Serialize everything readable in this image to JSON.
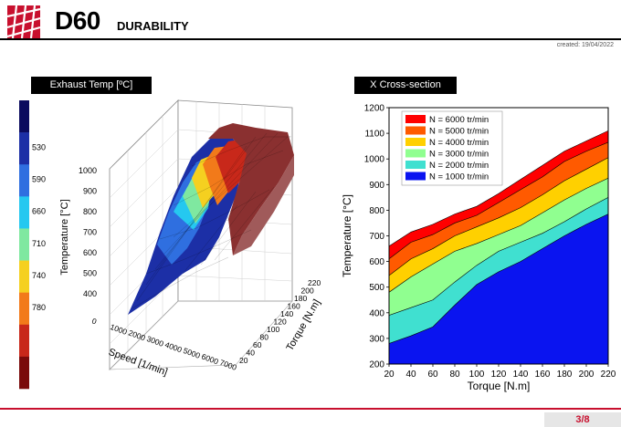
{
  "header": {
    "title_main": "D60",
    "title_sub": "DURABILITY",
    "created": "created: 19/04/2022"
  },
  "colors": {
    "brand_red": "#c8102e"
  },
  "left_panel": {
    "label": "Exhaust Temp [ºC]",
    "colorbar": {
      "colors": [
        "#0a0a5e",
        "#1c2fa6",
        "#2f6fe0",
        "#25c8f0",
        "#7fe8a0",
        "#f5d020",
        "#f27a1a",
        "#c8281a",
        "#7a0a0a"
      ],
      "labels": [
        "530",
        "590",
        "660",
        "710",
        "740",
        "780"
      ]
    },
    "surface_plot": {
      "z_ticks": [
        "1000",
        "900",
        "800",
        "700",
        "600",
        "500",
        "400"
      ],
      "z_label": "Temperature [°C]",
      "x_ticks": [
        "0",
        "1000",
        "2000",
        "3000",
        "4000",
        "5000",
        "6000",
        "7000"
      ],
      "x_label": "Speed [1/min]",
      "y_ticks": [
        "20",
        "40",
        "60",
        "80",
        "100",
        "120",
        "140",
        "160",
        "180",
        "200",
        "220"
      ],
      "y_label": "Torque [N.m]"
    }
  },
  "right_panel": {
    "label": "X Cross-section",
    "chart_data": {
      "type": "area",
      "x": [
        20,
        40,
        60,
        80,
        100,
        120,
        140,
        160,
        180,
        200,
        220
      ],
      "xlim": [
        20,
        220
      ],
      "ylim": [
        200,
        1200
      ],
      "xticks": [
        "20",
        "40",
        "60",
        "80",
        "100",
        "120",
        "140",
        "160",
        "180",
        "200",
        "220"
      ],
      "yticks": [
        "200",
        "300",
        "400",
        "500",
        "600",
        "700",
        "800",
        "900",
        "1000",
        "1100",
        "1200"
      ],
      "xlabel": "Torque [N.m]",
      "ylabel": "Temperature [°C]",
      "legend_position": "top-left",
      "series": [
        {
          "name": "N = 6000 tr/min",
          "color": "#ff0000",
          "values": [
            660,
            715,
            745,
            785,
            815,
            865,
            920,
            975,
            1030,
            1070,
            1110
          ]
        },
        {
          "name": "N = 5000 tr/min",
          "color": "#ff5a00",
          "values": [
            610,
            675,
            705,
            750,
            780,
            830,
            880,
            930,
            990,
            1030,
            1065
          ]
        },
        {
          "name": "N = 4000 tr/min",
          "color": "#ffd000",
          "values": [
            545,
            610,
            650,
            700,
            735,
            770,
            810,
            860,
            915,
            960,
            1005
          ]
        },
        {
          "name": "N = 3000 tr/min",
          "color": "#90ff90",
          "values": [
            480,
            540,
            590,
            640,
            670,
            705,
            740,
            790,
            840,
            885,
            925
          ]
        },
        {
          "name": "N = 2000 tr/min",
          "color": "#40e0d0",
          "values": [
            390,
            420,
            450,
            520,
            585,
            640,
            675,
            710,
            755,
            805,
            850
          ]
        },
        {
          "name": "N = 1000 tr/min",
          "color": "#0a14f0",
          "values": [
            280,
            310,
            345,
            430,
            510,
            560,
            600,
            650,
            700,
            745,
            785
          ]
        }
      ]
    }
  },
  "footer": {
    "page": "3/8"
  }
}
